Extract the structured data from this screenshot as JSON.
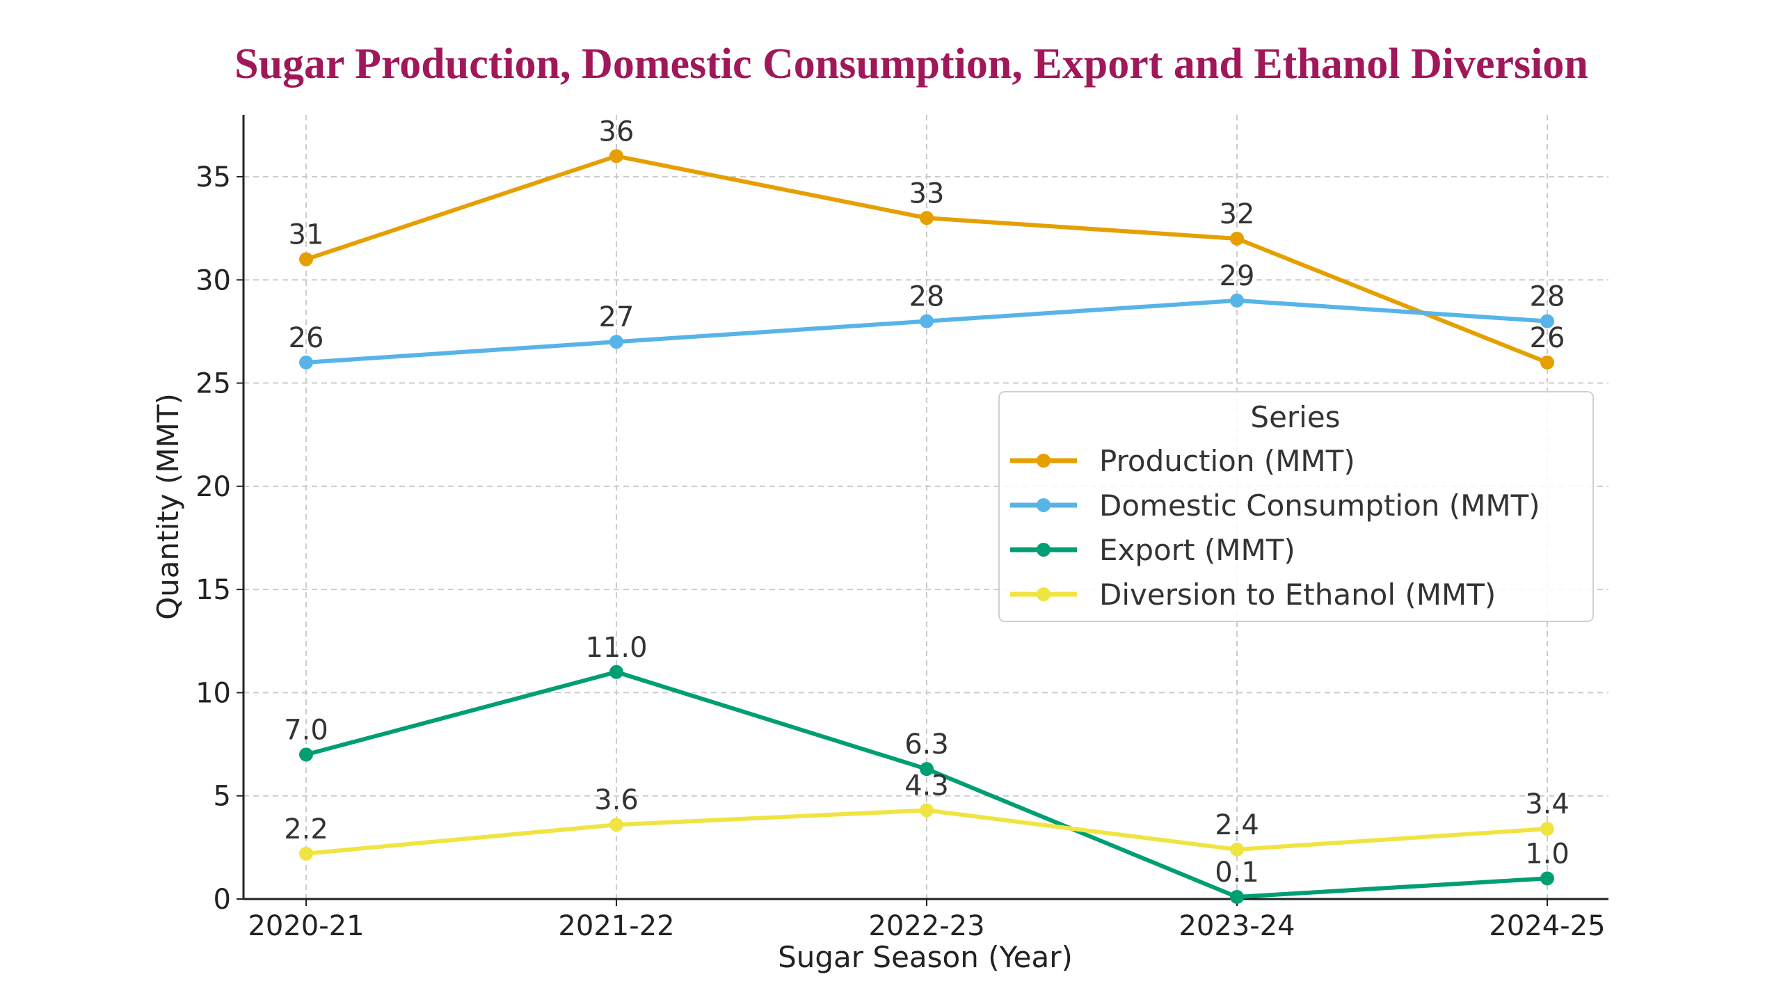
{
  "chart_data": {
    "type": "line",
    "title": "Sugar Production, Domestic Consumption, Export and Ethanol Diversion",
    "title_color": "#A0185A",
    "xlabel": "Sugar Season (Year)",
    "ylabel": "Quantity (MMT)",
    "categories": [
      "2020-21",
      "2021-22",
      "2022-23",
      "2023-24",
      "2024-25"
    ],
    "ylim": [
      0,
      38
    ],
    "yticks": [
      0,
      5,
      10,
      15,
      20,
      25,
      30,
      35
    ],
    "grid": true,
    "legend": {
      "title": "Series",
      "placement": "center-right"
    },
    "series": [
      {
        "name": "Production (MMT)",
        "color": "#E69F00",
        "values": [
          31,
          36,
          33,
          32,
          26
        ],
        "labels": [
          "31",
          "36",
          "33",
          "32",
          "26"
        ]
      },
      {
        "name": "Domestic Consumption (MMT)",
        "color": "#56B4E9",
        "values": [
          26,
          27,
          28,
          29,
          28
        ],
        "labels": [
          "26",
          "27",
          "28",
          "29",
          "28"
        ]
      },
      {
        "name": "Export (MMT)",
        "color": "#009E73",
        "values": [
          7.0,
          11.0,
          6.3,
          0.1,
          1.0
        ],
        "labels": [
          "7.0",
          "11.0",
          "6.3",
          "0.1",
          "1.0"
        ]
      },
      {
        "name": "Diversion to Ethanol (MMT)",
        "color": "#F0E442",
        "values": [
          2.2,
          3.6,
          4.3,
          2.4,
          3.4
        ],
        "labels": [
          "2.2",
          "3.6",
          "4.3",
          "2.4",
          "3.4"
        ]
      }
    ]
  }
}
